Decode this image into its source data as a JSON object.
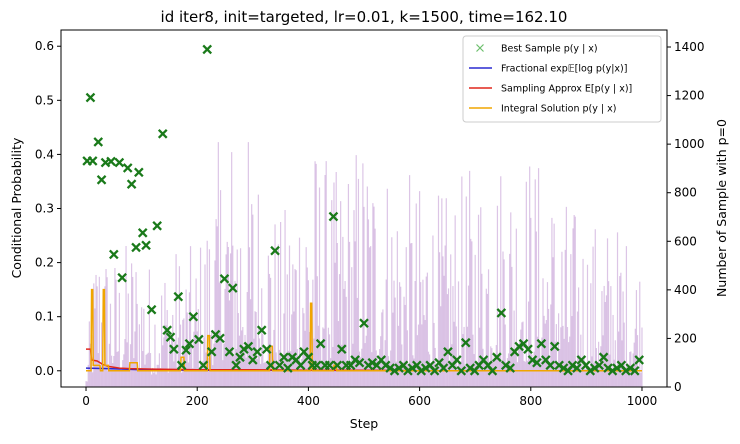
{
  "chart_data": {
    "type": "line",
    "title": "id iter8, init=targeted, lr=0.01, k=1500, time=162.10",
    "xlabel": "Step",
    "ylabel_left": "Conditional Probability",
    "ylabel_right": "Number of Sample with p=0",
    "xlim": [
      -45,
      1045
    ],
    "ylim_left": [
      -0.03,
      0.63
    ],
    "ylim_right": [
      0,
      1470
    ],
    "x_ticks": [
      0,
      200,
      400,
      600,
      800,
      1000
    ],
    "y_ticks_left": [
      0.0,
      0.1,
      0.2,
      0.3,
      0.4,
      0.5,
      0.6
    ],
    "y_ticks_right": [
      0,
      200,
      400,
      600,
      800,
      1000,
      1200,
      1400
    ],
    "legend_position": "top-right",
    "colors": {
      "best_sample": "#1a7a1a",
      "fractional": "#2a2ad0",
      "sampling": "#e0261c",
      "integral": "#f0a500",
      "zero_count": "#9b59b6",
      "right_axis_label": "#800080"
    },
    "legend": [
      {
        "label": "Best Sample p(y | x)",
        "marker": "x",
        "color": "#6bbf6b"
      },
      {
        "label": "Fractional exp𝔼[log p(y|x)]",
        "marker": "line",
        "color": "#2a2ad0"
      },
      {
        "label": "Sampling Approx E[p(y | x)]",
        "marker": "line",
        "color": "#e0261c"
      },
      {
        "label": "Integral Solution p(y | x)",
        "marker": "line",
        "color": "#f0a500"
      }
    ],
    "series": [
      {
        "name": "Best Sample p(y | x)",
        "axis": "left",
        "kind": "scatter",
        "points": [
          [
            2,
            0.388
          ],
          [
            8,
            0.505
          ],
          [
            12,
            0.388
          ],
          [
            22,
            0.423
          ],
          [
            28,
            0.353
          ],
          [
            35,
            0.385
          ],
          [
            45,
            0.387
          ],
          [
            50,
            0.215
          ],
          [
            60,
            0.385
          ],
          [
            65,
            0.172
          ],
          [
            75,
            0.375
          ],
          [
            82,
            0.345
          ],
          [
            90,
            0.228
          ],
          [
            95,
            0.367
          ],
          [
            102,
            0.255
          ],
          [
            108,
            0.232
          ],
          [
            118,
            0.113
          ],
          [
            128,
            0.268
          ],
          [
            138,
            0.438
          ],
          [
            146,
            0.075
          ],
          [
            152,
            0.062
          ],
          [
            158,
            0.04
          ],
          [
            166,
            0.137
          ],
          [
            172,
            0.01
          ],
          [
            180,
            0.038
          ],
          [
            186,
            0.05
          ],
          [
            193,
            0.1
          ],
          [
            203,
            0.058
          ],
          [
            211,
            0.01
          ],
          [
            218,
            0.594
          ],
          [
            226,
            0.035
          ],
          [
            233,
            0.067
          ],
          [
            241,
            0.06
          ],
          [
            249,
            0.17
          ],
          [
            258,
            0.035
          ],
          [
            264,
            0.153
          ],
          [
            270,
            0.01
          ],
          [
            277,
            0.025
          ],
          [
            284,
            0.04
          ],
          [
            292,
            0.045
          ],
          [
            300,
            0.02
          ],
          [
            308,
            0.035
          ],
          [
            316,
            0.075
          ],
          [
            325,
            0.04
          ],
          [
            332,
            0.01
          ],
          [
            340,
            0.222
          ],
          [
            348,
            0.01
          ],
          [
            356,
            0.025
          ],
          [
            363,
            0.005
          ],
          [
            371,
            0.025
          ],
          [
            378,
            0.02
          ],
          [
            386,
            0.01
          ],
          [
            392,
            0.035
          ],
          [
            400,
            0.025
          ],
          [
            407,
            0.01
          ],
          [
            415,
            0.01
          ],
          [
            422,
            0.05
          ],
          [
            430,
            0.01
          ],
          [
            438,
            0.01
          ],
          [
            445,
            0.285
          ],
          [
            452,
            0.01
          ],
          [
            460,
            0.04
          ],
          [
            468,
            0.01
          ],
          [
            476,
            0.01
          ],
          [
            484,
            0.02
          ],
          [
            492,
            0.015
          ],
          [
            500,
            0.088
          ],
          [
            508,
            0.01
          ],
          [
            515,
            0.015
          ],
          [
            523,
            0.01
          ],
          [
            531,
            0.02
          ],
          [
            539,
            0.01
          ],
          [
            547,
            0.005
          ],
          [
            555,
            0.0
          ],
          [
            563,
            0.005
          ],
          [
            571,
            0.01
          ],
          [
            579,
            0.0
          ],
          [
            587,
            0.005
          ],
          [
            595,
            0.01
          ],
          [
            603,
            0.0
          ],
          [
            611,
            0.005
          ],
          [
            619,
            0.01
          ],
          [
            627,
            0.0
          ],
          [
            635,
            0.015
          ],
          [
            643,
            0.005
          ],
          [
            651,
            0.035
          ],
          [
            659,
            0.01
          ],
          [
            667,
            0.02
          ],
          [
            675,
            0.0
          ],
          [
            683,
            0.052
          ],
          [
            691,
            0.005
          ],
          [
            699,
            0.0
          ],
          [
            707,
            0.01
          ],
          [
            715,
            0.02
          ],
          [
            723,
            0.01
          ],
          [
            731,
            0.0
          ],
          [
            739,
            0.025
          ],
          [
            747,
            0.107
          ],
          [
            755,
            0.01
          ],
          [
            763,
            0.005
          ],
          [
            771,
            0.035
          ],
          [
            779,
            0.045
          ],
          [
            787,
            0.05
          ],
          [
            795,
            0.04
          ],
          [
            803,
            0.02
          ],
          [
            811,
            0.015
          ],
          [
            819,
            0.05
          ],
          [
            827,
            0.02
          ],
          [
            835,
            0.01
          ],
          [
            843,
            0.045
          ],
          [
            851,
            0.01
          ],
          [
            859,
            0.005
          ],
          [
            867,
            0.0
          ],
          [
            875,
            0.01
          ],
          [
            883,
            0.005
          ],
          [
            891,
            0.02
          ],
          [
            899,
            0.01
          ],
          [
            907,
            0.0
          ],
          [
            915,
            0.005
          ],
          [
            923,
            0.01
          ],
          [
            931,
            0.025
          ],
          [
            939,
            0.005
          ],
          [
            947,
            0.0
          ],
          [
            955,
            0.005
          ],
          [
            963,
            0.01
          ],
          [
            971,
            0.0
          ],
          [
            979,
            0.005
          ],
          [
            987,
            0.0
          ],
          [
            995,
            0.02
          ]
        ]
      },
      {
        "name": "Fractional exp𝔼[log p(y|x)]",
        "axis": "left",
        "kind": "line",
        "points": [
          [
            0,
            0.005
          ],
          [
            40,
            0.004
          ],
          [
            100,
            0.002
          ],
          [
            200,
            0.001
          ],
          [
            400,
            0.001
          ],
          [
            600,
            0.0
          ],
          [
            1000,
            0.0
          ]
        ]
      },
      {
        "name": "Sampling Approx E[p(y | x)]",
        "axis": "left",
        "kind": "line",
        "points": [
          [
            0,
            0.04
          ],
          [
            8,
            0.04
          ],
          [
            10,
            0.02
          ],
          [
            20,
            0.018
          ],
          [
            30,
            0.012
          ],
          [
            40,
            0.008
          ],
          [
            60,
            0.005
          ],
          [
            80,
            0.004
          ],
          [
            120,
            0.003
          ],
          [
            200,
            0.002
          ],
          [
            300,
            0.002
          ],
          [
            400,
            0.001
          ],
          [
            500,
            0.001
          ],
          [
            600,
            0.0
          ],
          [
            800,
            0.0
          ],
          [
            1000,
            0.0
          ]
        ]
      },
      {
        "name": "Integral Solution p(y | x)",
        "axis": "left",
        "kind": "line",
        "points": [
          [
            0,
            0.0
          ],
          [
            9,
            0.0
          ],
          [
            10,
            0.15
          ],
          [
            12,
            0.15
          ],
          [
            13,
            0.01
          ],
          [
            25,
            0.01
          ],
          [
            26,
            0.0
          ],
          [
            30,
            0.0
          ],
          [
            31,
            0.15
          ],
          [
            33,
            0.15
          ],
          [
            34,
            0.01
          ],
          [
            40,
            0.01
          ],
          [
            41,
            0.0
          ],
          [
            78,
            0.0
          ],
          [
            79,
            0.015
          ],
          [
            92,
            0.015
          ],
          [
            93,
            0.0
          ],
          [
            170,
            0.0
          ],
          [
            171,
            0.025
          ],
          [
            176,
            0.025
          ],
          [
            177,
            0.0
          ],
          [
            218,
            0.0
          ],
          [
            219,
            0.065
          ],
          [
            222,
            0.065
          ],
          [
            223,
            0.0
          ],
          [
            330,
            0.0
          ],
          [
            331,
            0.045
          ],
          [
            335,
            0.045
          ],
          [
            336,
            0.0
          ],
          [
            403,
            0.0
          ],
          [
            404,
            0.125
          ],
          [
            406,
            0.125
          ],
          [
            407,
            0.0
          ],
          [
            445,
            0.0
          ],
          [
            446,
            0.01
          ],
          [
            450,
            0.01
          ],
          [
            451,
            0.0
          ],
          [
            1000,
            0.0
          ]
        ]
      },
      {
        "name": "Number of Sample with p=0",
        "axis": "right",
        "kind": "bars",
        "description_of_values": "dense vertical spikes per step",
        "envelope": [
          [
            0,
            50
          ],
          [
            10,
            420
          ],
          [
            20,
            700
          ],
          [
            40,
            600
          ],
          [
            60,
            550
          ],
          [
            80,
            650
          ],
          [
            100,
            620
          ],
          [
            120,
            500
          ],
          [
            150,
            600
          ],
          [
            200,
            580
          ],
          [
            250,
            1150
          ],
          [
            300,
            1050
          ],
          [
            350,
            700
          ],
          [
            400,
            1100
          ],
          [
            450,
            900
          ],
          [
            500,
            1100
          ],
          [
            550,
            950
          ],
          [
            600,
            850
          ],
          [
            650,
            800
          ],
          [
            700,
            950
          ],
          [
            750,
            1020
          ],
          [
            800,
            1020
          ],
          [
            850,
            830
          ],
          [
            900,
            700
          ],
          [
            950,
            700
          ],
          [
            1000,
            580
          ]
        ]
      }
    ]
  }
}
